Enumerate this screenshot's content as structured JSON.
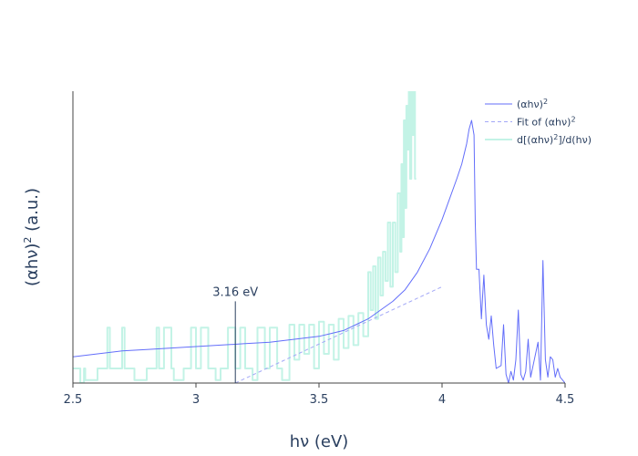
{
  "chart_data": {
    "type": "line",
    "xlabel": "hν (eV)",
    "ylabel": {
      "pre": "(αhν)",
      "sup": "2",
      "post": " (a.u.)"
    },
    "xlim": [
      2.5,
      4.5
    ],
    "ylim": [
      0,
      1
    ],
    "x_ticks": [
      {
        "value": 2.5,
        "label": "2.5"
      },
      {
        "value": 3.0,
        "label": "3"
      },
      {
        "value": 3.5,
        "label": "3.5"
      },
      {
        "value": 4.0,
        "label": "4"
      },
      {
        "value": 4.5,
        "label": "4.5"
      }
    ],
    "grid": false,
    "legend_position": "top-right",
    "annotation": {
      "x": 3.16,
      "y_top": 0.28,
      "text": "3.16 eV",
      "color": "#2a3f5f"
    },
    "series": [
      {
        "key": "absorption",
        "legend": {
          "pre": "(αhν)",
          "sup": "2",
          "post": ""
        },
        "color": "#636efa",
        "dash": "solid",
        "x": [
          2.5,
          2.6,
          2.7,
          2.8,
          2.9,
          3.0,
          3.1,
          3.2,
          3.3,
          3.4,
          3.5,
          3.55,
          3.6,
          3.65,
          3.7,
          3.75,
          3.8,
          3.85,
          3.9,
          3.95,
          4.0,
          4.03,
          4.06,
          4.08,
          4.1,
          4.11,
          4.12,
          4.13,
          4.135,
          4.14,
          4.15,
          4.16,
          4.165,
          4.17,
          4.18,
          4.19,
          4.2,
          4.21,
          4.22,
          4.24,
          4.25,
          4.26,
          4.27,
          4.28,
          4.29,
          4.3,
          4.31,
          4.32,
          4.33,
          4.34,
          4.35,
          4.36,
          4.37,
          4.38,
          4.39,
          4.4,
          4.41,
          4.42,
          4.43,
          4.44,
          4.45,
          4.46,
          4.47,
          4.48,
          4.49,
          4.5
        ],
        "y": [
          0.09,
          0.1,
          0.11,
          0.115,
          0.12,
          0.125,
          0.13,
          0.135,
          0.14,
          0.15,
          0.16,
          0.17,
          0.18,
          0.2,
          0.22,
          0.25,
          0.28,
          0.32,
          0.38,
          0.46,
          0.56,
          0.63,
          0.7,
          0.75,
          0.82,
          0.87,
          0.9,
          0.85,
          0.55,
          0.39,
          0.39,
          0.22,
          0.3,
          0.37,
          0.2,
          0.15,
          0.23,
          0.13,
          0.05,
          0.06,
          0.2,
          0.03,
          0.0,
          0.04,
          0.01,
          0.08,
          0.25,
          0.03,
          0.01,
          0.04,
          0.15,
          0.02,
          0.06,
          0.1,
          0.14,
          0.01,
          0.42,
          0.08,
          0.02,
          0.09,
          0.08,
          0.02,
          0.05,
          0.02,
          0.01,
          0.0
        ]
      },
      {
        "key": "fit",
        "legend": {
          "pre": "Fit of (αhν)",
          "sup": "2",
          "post": ""
        },
        "color": "#a3a8f7",
        "dash": "dash",
        "x": [
          3.16,
          4.0
        ],
        "y": [
          0.0,
          0.33
        ]
      },
      {
        "key": "derivative",
        "legend": {
          "pre": "d[(αhν)",
          "sup": "2",
          "post": "]/d(hν)"
        },
        "color": "#c3f3e6",
        "dash": "solid",
        "x": [
          2.5,
          2.53,
          2.53,
          2.545,
          2.545,
          2.55,
          2.55,
          2.6,
          2.6,
          2.64,
          2.64,
          2.65,
          2.65,
          2.7,
          2.7,
          2.71,
          2.71,
          2.75,
          2.75,
          2.8,
          2.8,
          2.84,
          2.84,
          2.85,
          2.85,
          2.87,
          2.87,
          2.9,
          2.9,
          2.91,
          2.91,
          2.95,
          2.95,
          2.98,
          2.98,
          3.0,
          3.0,
          3.02,
          3.02,
          3.05,
          3.05,
          3.08,
          3.08,
          3.1,
          3.1,
          3.13,
          3.13,
          3.16,
          3.16,
          3.18,
          3.18,
          3.2,
          3.2,
          3.23,
          3.23,
          3.25,
          3.25,
          3.28,
          3.28,
          3.3,
          3.3,
          3.33,
          3.33,
          3.35,
          3.35,
          3.38,
          3.38,
          3.4,
          3.4,
          3.42,
          3.42,
          3.44,
          3.44,
          3.46,
          3.46,
          3.48,
          3.48,
          3.5,
          3.5,
          3.52,
          3.52,
          3.54,
          3.54,
          3.56,
          3.56,
          3.58,
          3.58,
          3.6,
          3.6,
          3.62,
          3.62,
          3.64,
          3.64,
          3.66,
          3.66,
          3.68,
          3.68,
          3.7,
          3.7,
          3.71,
          3.71,
          3.72,
          3.72,
          3.73,
          3.73,
          3.74,
          3.74,
          3.75,
          3.75,
          3.76,
          3.76,
          3.77,
          3.77,
          3.78,
          3.78,
          3.79,
          3.79,
          3.8,
          3.8,
          3.81,
          3.81,
          3.82,
          3.82,
          3.83,
          3.83,
          3.835,
          3.835,
          3.84,
          3.84,
          3.845,
          3.845,
          3.85,
          3.85,
          3.855,
          3.855,
          3.86,
          3.86,
          3.865,
          3.865,
          3.87,
          3.87,
          3.875,
          3.875,
          3.88,
          3.88,
          3.885,
          3.885,
          3.89,
          3.89,
          3.895
        ],
        "y": [
          0.05,
          0.05,
          0.0,
          0.0,
          0.05,
          0.05,
          0.01,
          0.01,
          0.05,
          0.05,
          0.19,
          0.19,
          0.05,
          0.05,
          0.19,
          0.19,
          0.05,
          0.05,
          0.01,
          0.01,
          0.05,
          0.05,
          0.19,
          0.19,
          0.05,
          0.05,
          0.19,
          0.19,
          0.05,
          0.05,
          0.01,
          0.01,
          0.05,
          0.05,
          0.19,
          0.19,
          0.05,
          0.05,
          0.19,
          0.19,
          0.05,
          0.05,
          0.01,
          0.01,
          0.05,
          0.05,
          0.19,
          0.19,
          0.05,
          0.05,
          0.19,
          0.19,
          0.05,
          0.05,
          0.01,
          0.01,
          0.19,
          0.19,
          0.05,
          0.05,
          0.19,
          0.19,
          0.05,
          0.05,
          0.01,
          0.01,
          0.2,
          0.2,
          0.08,
          0.08,
          0.2,
          0.2,
          0.1,
          0.1,
          0.2,
          0.2,
          0.05,
          0.05,
          0.21,
          0.21,
          0.1,
          0.1,
          0.2,
          0.2,
          0.08,
          0.08,
          0.22,
          0.22,
          0.12,
          0.12,
          0.23,
          0.23,
          0.13,
          0.13,
          0.24,
          0.24,
          0.16,
          0.16,
          0.38,
          0.38,
          0.25,
          0.25,
          0.4,
          0.4,
          0.22,
          0.22,
          0.43,
          0.43,
          0.3,
          0.3,
          0.45,
          0.45,
          0.35,
          0.35,
          0.55,
          0.55,
          0.33,
          0.33,
          0.55,
          0.55,
          0.38,
          0.38,
          0.65,
          0.65,
          0.45,
          0.45,
          0.75,
          0.75,
          0.5,
          0.5,
          0.9,
          0.9,
          0.6,
          0.6,
          0.95,
          0.95,
          0.8,
          0.8,
          1.0,
          1.0,
          0.7,
          0.7,
          1.0,
          1.0,
          0.85,
          0.85,
          1.0,
          1.0,
          0.7,
          0.7
        ]
      }
    ]
  }
}
